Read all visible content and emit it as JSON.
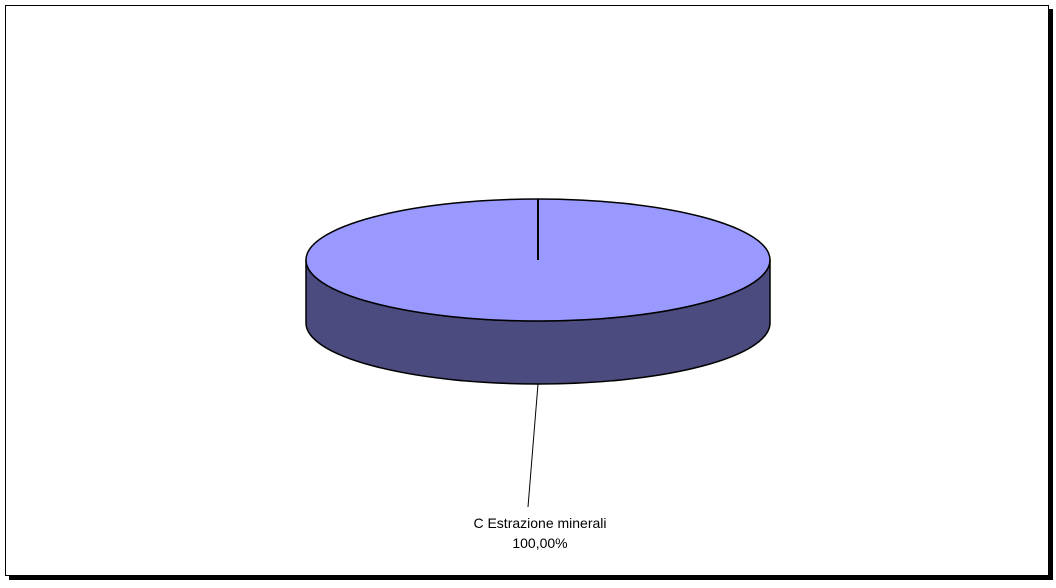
{
  "chart_data": {
    "type": "pie",
    "title": "",
    "slices": [
      {
        "label": "C   Estrazione minerali",
        "value": 100.0,
        "value_label": "100,00%",
        "color": "#9999FF",
        "side_color": "#4B4B7F"
      }
    ],
    "style": "3d",
    "legend": "none"
  }
}
